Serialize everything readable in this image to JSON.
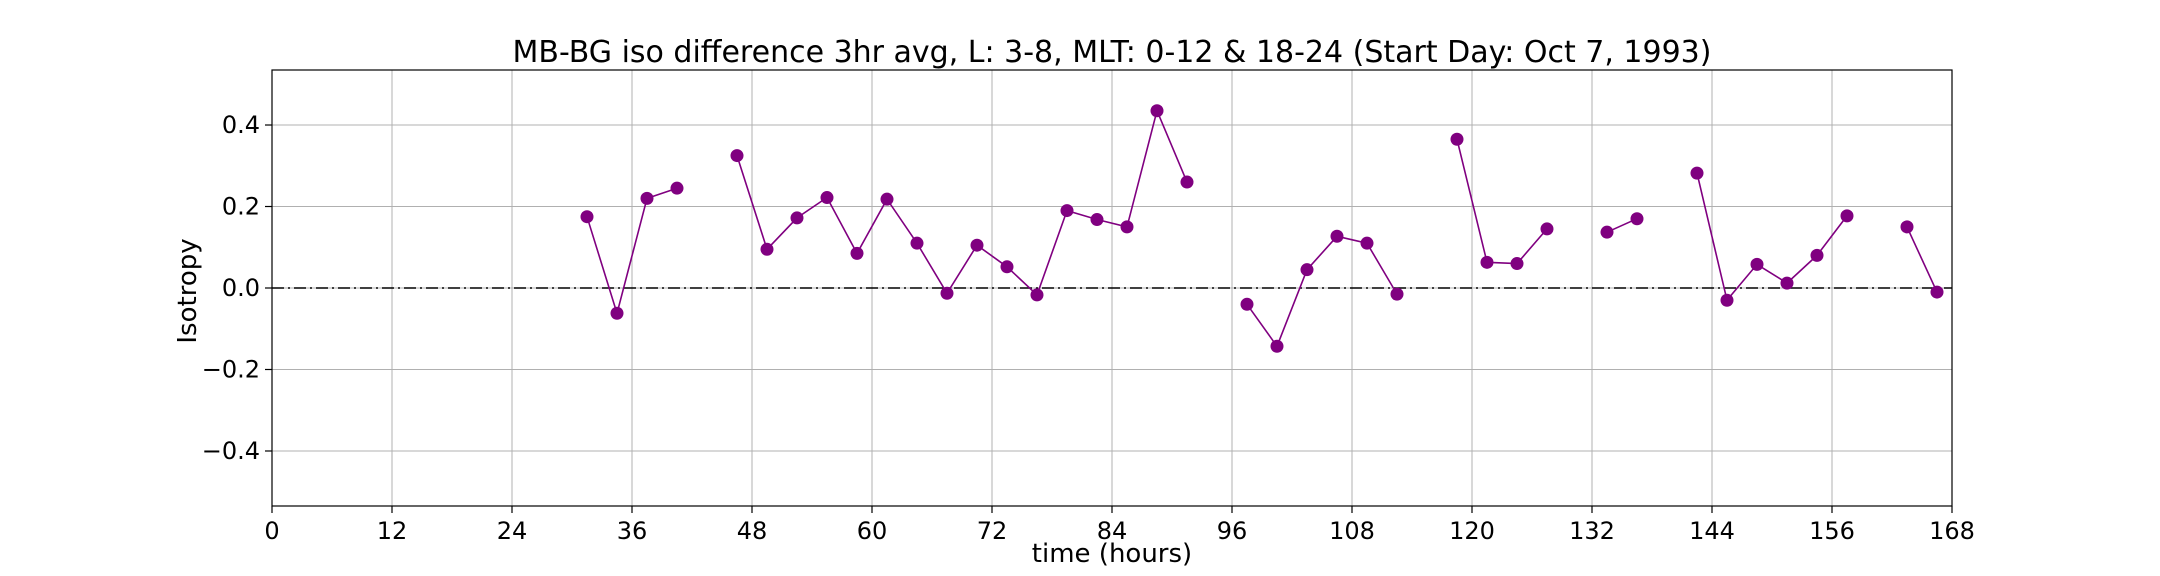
{
  "chart_data": {
    "type": "line",
    "title": "MB-BG iso difference 3hr avg, L: 3-8, MLT: 0-12 & 18-24 (Start Day: Oct 7, 1993)",
    "xlabel": "time (hours)",
    "ylabel": "Isotropy",
    "xlim": [
      0,
      168
    ],
    "ylim": [
      -0.535,
      0.535
    ],
    "xticks": [
      0,
      12,
      24,
      36,
      48,
      60,
      72,
      84,
      96,
      108,
      120,
      132,
      144,
      156,
      168
    ],
    "xtick_labels": [
      "0",
      "12",
      "24",
      "36",
      "48",
      "60",
      "72",
      "84",
      "96",
      "108",
      "120",
      "132",
      "144",
      "156",
      "168"
    ],
    "yticks": [
      0.4,
      0.2,
      0.0,
      -0.2,
      -0.4
    ],
    "ytick_labels": [
      "0.4",
      "0.2",
      "0.0",
      "−0.2",
      "−0.4"
    ],
    "grid": true,
    "reference_line": {
      "y": 0,
      "style": "dash-dot",
      "color": "#000000"
    },
    "series": [
      {
        "color": "#800080",
        "marker": "circle",
        "segments": [
          [
            [
              31.5,
              0.175
            ],
            [
              34.5,
              -0.062
            ],
            [
              37.5,
              0.22
            ],
            [
              40.5,
              0.245
            ]
          ],
          [
            [
              46.5,
              0.325
            ],
            [
              49.5,
              0.095
            ],
            [
              52.5,
              0.172
            ],
            [
              55.5,
              0.222
            ],
            [
              58.5,
              0.085
            ],
            [
              61.5,
              0.218
            ],
            [
              64.5,
              0.11
            ],
            [
              67.5,
              -0.013
            ],
            [
              70.5,
              0.105
            ],
            [
              73.5,
              0.052
            ],
            [
              76.5,
              -0.017
            ],
            [
              79.5,
              0.19
            ],
            [
              82.5,
              0.168
            ],
            [
              85.5,
              0.15
            ],
            [
              88.5,
              0.435
            ],
            [
              91.5,
              0.26
            ]
          ],
          [
            [
              97.5,
              -0.04
            ],
            [
              100.5,
              -0.143
            ],
            [
              103.5,
              0.045
            ],
            [
              106.5,
              0.127
            ],
            [
              109.5,
              0.11
            ],
            [
              112.5,
              -0.015
            ]
          ],
          [
            [
              118.5,
              0.365
            ],
            [
              121.5,
              0.063
            ],
            [
              124.5,
              0.06
            ],
            [
              127.5,
              0.145
            ]
          ],
          [
            [
              133.5,
              0.137
            ],
            [
              136.5,
              0.17
            ]
          ],
          [
            [
              142.5,
              0.282
            ],
            [
              145.5,
              -0.03
            ],
            [
              148.5,
              0.058
            ],
            [
              151.5,
              0.012
            ],
            [
              154.5,
              0.08
            ],
            [
              157.5,
              0.177
            ]
          ],
          [
            [
              163.5,
              0.15
            ],
            [
              166.5,
              -0.01
            ]
          ]
        ]
      }
    ]
  }
}
